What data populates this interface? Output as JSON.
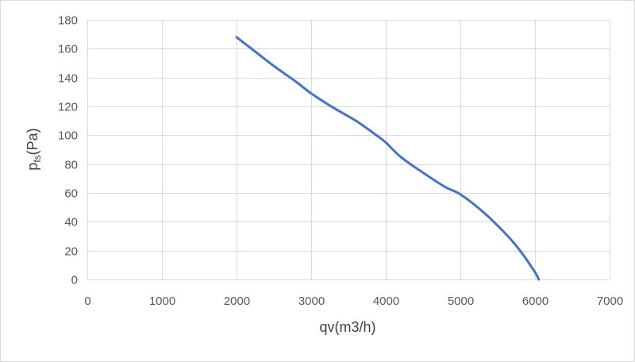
{
  "chart_data": {
    "type": "line",
    "title": "",
    "xlabel": "qv(m3/h)",
    "ylabel_main": "p",
    "ylabel_sub": "fs",
    "ylabel_rest": "(Pa)",
    "xlim": [
      0,
      7000
    ],
    "ylim": [
      0,
      180
    ],
    "xticks": [
      0,
      1000,
      2000,
      3000,
      4000,
      5000,
      6000,
      7000
    ],
    "yticks": [
      0,
      20,
      40,
      60,
      80,
      100,
      120,
      140,
      160,
      180
    ],
    "grid": true,
    "legend": "none",
    "series": [
      {
        "color": "#4472c4",
        "x": [
          2000,
          2200,
          2500,
          2800,
          3000,
          3300,
          3600,
          3900,
          4000,
          4200,
          4500,
          4800,
          5000,
          5300,
          5600,
          5800,
          6000,
          6050
        ],
        "y": [
          168,
          160,
          148,
          137,
          129,
          119,
          110,
          99,
          95,
          85,
          74,
          64,
          59,
          47,
          32,
          20,
          5,
          0
        ]
      }
    ]
  }
}
